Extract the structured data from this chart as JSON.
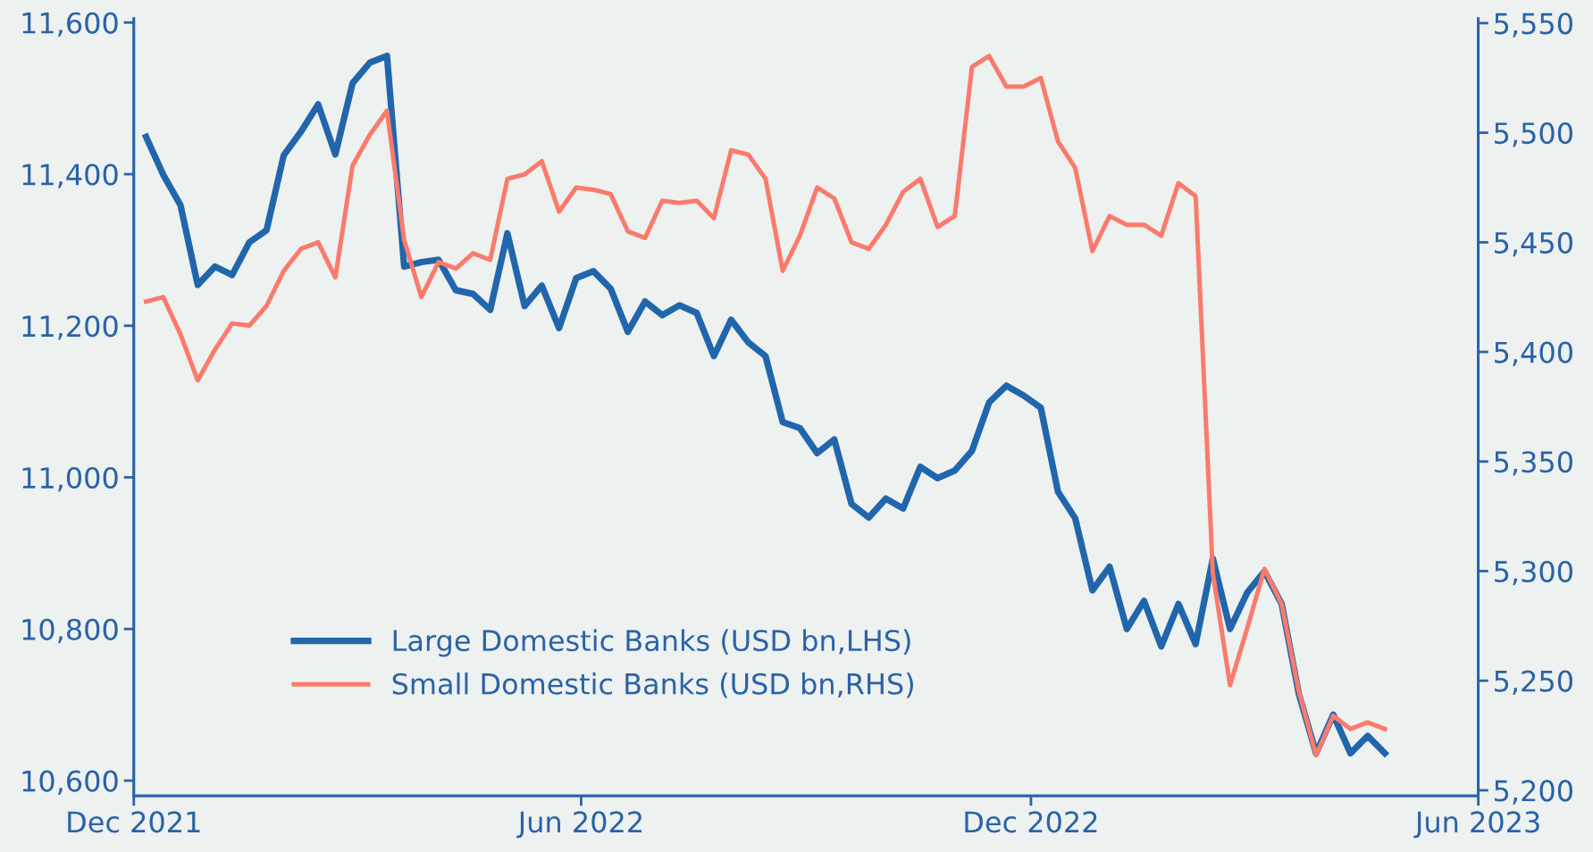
{
  "chart_data": {
    "type": "line",
    "x": [
      "2021-12-06",
      "2021-12-13",
      "2021-12-20",
      "2021-12-27",
      "2022-01-03",
      "2022-01-10",
      "2022-01-17",
      "2022-01-24",
      "2022-01-31",
      "2022-02-07",
      "2022-02-14",
      "2022-02-21",
      "2022-02-28",
      "2022-03-07",
      "2022-03-14",
      "2022-03-21",
      "2022-03-28",
      "2022-04-04",
      "2022-04-11",
      "2022-04-18",
      "2022-04-25",
      "2022-05-02",
      "2022-05-09",
      "2022-05-16",
      "2022-05-23",
      "2022-05-30",
      "2022-06-06",
      "2022-06-13",
      "2022-06-20",
      "2022-06-27",
      "2022-07-04",
      "2022-07-11",
      "2022-07-18",
      "2022-07-25",
      "2022-08-01",
      "2022-08-08",
      "2022-08-15",
      "2022-08-22",
      "2022-08-29",
      "2022-09-05",
      "2022-09-12",
      "2022-09-19",
      "2022-09-26",
      "2022-10-03",
      "2022-10-10",
      "2022-10-17",
      "2022-10-24",
      "2022-10-31",
      "2022-11-07",
      "2022-11-14",
      "2022-11-21",
      "2022-11-28",
      "2022-12-05",
      "2022-12-12",
      "2022-12-19",
      "2022-12-26",
      "2023-01-02",
      "2023-01-09",
      "2023-01-16",
      "2023-01-23",
      "2023-01-30",
      "2023-02-06",
      "2023-02-13",
      "2023-02-20",
      "2023-02-27",
      "2023-03-06",
      "2023-03-13",
      "2023-03-20",
      "2023-03-27",
      "2023-04-03",
      "2023-04-10",
      "2023-04-17",
      "2023-04-24"
    ],
    "series": [
      {
        "name": "Large Domestic Banks (USD bn,LHS)",
        "color": "#2166ac",
        "values": [
          11449,
          11399,
          11359,
          11254,
          11278,
          11267,
          11310,
          11326,
          11425,
          11456,
          11492,
          11426,
          11520,
          11547,
          11556,
          11278,
          11284,
          11287,
          11247,
          11242,
          11221,
          11322,
          11226,
          11253,
          11197,
          11263,
          11272,
          11249,
          11192,
          11232,
          11214,
          11227,
          11217,
          11160,
          11208,
          11178,
          11160,
          11073,
          11065,
          11032,
          11050,
          10965,
          10947,
          10972,
          10959,
          11014,
          10999,
          11009,
          11035,
          11099,
          11121,
          11108,
          11092,
          10981,
          10946,
          10851,
          10882,
          10800,
          10837,
          10777,
          10833,
          10780,
          10893,
          10800,
          10848,
          10876,
          10833,
          10714,
          10636,
          10687,
          10636,
          10659,
          10636
        ]
      },
      {
        "name": "Small Domestic Banks (USD bn,RHS)",
        "color": "#fa7a6c",
        "axis": "y2",
        "values": [
          5423,
          5425,
          5408,
          5387,
          5401,
          5413,
          5412,
          5421,
          5437,
          5447,
          5450,
          5434,
          5485,
          5499,
          5510,
          5451,
          5425,
          5441,
          5438,
          5445,
          5442,
          5479,
          5481,
          5487,
          5464,
          5475,
          5474,
          5472,
          5455,
          5452,
          5469,
          5468,
          5469,
          5461,
          5492,
          5490,
          5479,
          5437,
          5453,
          5475,
          5470,
          5450,
          5447,
          5458,
          5473,
          5479,
          5457,
          5462,
          5530,
          5535,
          5521,
          5521,
          5525,
          5496,
          5484,
          5446,
          5462,
          5458,
          5458,
          5453,
          5477,
          5471,
          5299,
          5248,
          5274,
          5301,
          5285,
          5245,
          5216,
          5234,
          5228,
          5231,
          5228
        ]
      }
    ],
    "xlim": [
      "2021-12-01",
      "2023-06-01"
    ],
    "xticks": [
      {
        "value": "2021-12-01",
        "label": "Dec 2021"
      },
      {
        "value": "2022-06-01",
        "label": "Jun 2022"
      },
      {
        "value": "2022-12-01",
        "label": "Dec 2022"
      },
      {
        "value": "2023-06-01",
        "label": "Jun 2023"
      }
    ],
    "ylim": [
      10580,
      11605
    ],
    "yticks": [
      {
        "value": 10600,
        "label": "10,600"
      },
      {
        "value": 10800,
        "label": "10,800"
      },
      {
        "value": 11000,
        "label": "11,000"
      },
      {
        "value": 11200,
        "label": "11,200"
      },
      {
        "value": 11400,
        "label": "11,400"
      },
      {
        "value": 11600,
        "label": "11,600"
      }
    ],
    "y2lim": [
      5197.5,
      5552
    ],
    "y2ticks": [
      {
        "value": 5200,
        "label": "5,200"
      },
      {
        "value": 5250,
        "label": "5,250"
      },
      {
        "value": 5300,
        "label": "5,300"
      },
      {
        "value": 5350,
        "label": "5,350"
      },
      {
        "value": 5400,
        "label": "5,400"
      },
      {
        "value": 5450,
        "label": "5,450"
      },
      {
        "value": 5500,
        "label": "5,500"
      },
      {
        "value": 5550,
        "label": "5,550"
      }
    ],
    "grid": false,
    "legend": "bottom left",
    "marker": "none",
    "line_style": "solid"
  }
}
